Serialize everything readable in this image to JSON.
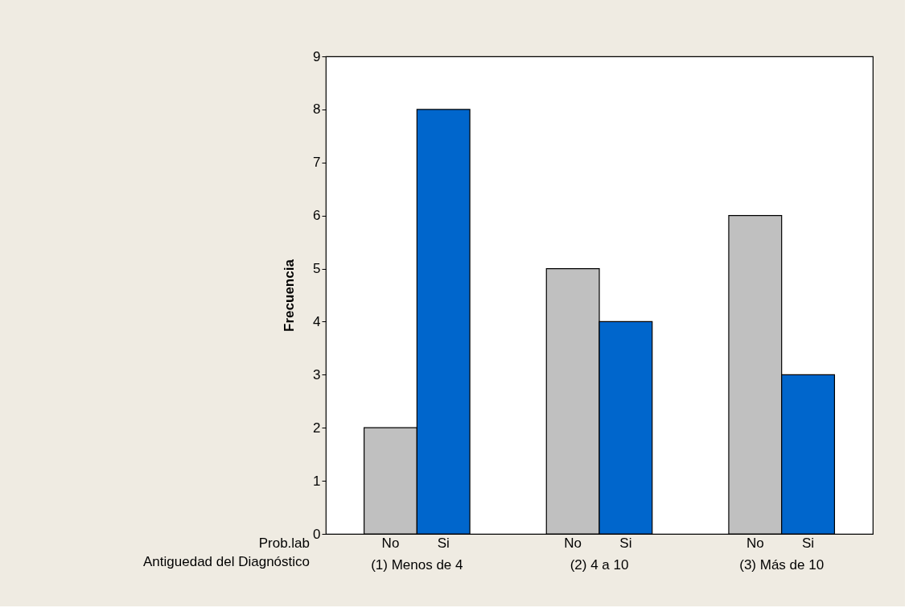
{
  "chart_data": {
    "type": "bar",
    "ylabel": "Frecuencia",
    "xlabel": "Antiguedad del Diagnóstico",
    "legend_title": "Prob.lab",
    "categories": [
      "(1) Menos de 4",
      "(2) 4 a 10",
      "(3) Más de 10"
    ],
    "series": [
      {
        "name": "No",
        "color": "#c0c0c0",
        "values": [
          2,
          5,
          6
        ]
      },
      {
        "name": "Si",
        "color": "#0066cc",
        "values": [
          8,
          4,
          3
        ]
      }
    ],
    "ylim": [
      0,
      9
    ],
    "yticks": [
      0,
      1,
      2,
      3,
      4,
      5,
      6,
      7,
      8,
      9
    ],
    "grid": false,
    "legend": false
  }
}
